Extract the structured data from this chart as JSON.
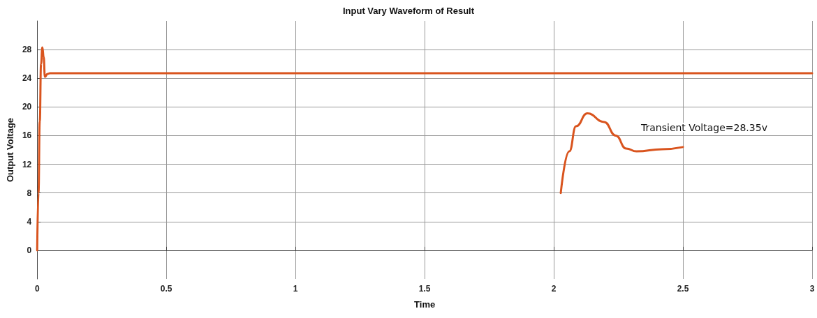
{
  "chart_data": {
    "type": "line",
    "title": "Input Vary Waveform of Result",
    "xlabel": "Time",
    "ylabel": "Output Voltage",
    "series": [
      {
        "color": "#d9541e",
        "x": [
          0,
          0.005,
          0.01,
          0.015,
          0.02,
          0.025,
          0.03,
          0.04,
          0.05,
          3
        ],
        "values": [
          0,
          8,
          18,
          26,
          28.3,
          27,
          24.2,
          24.6,
          24.7,
          24.7
        ]
      },
      {
        "color": "#d9541e",
        "x": [
          2.027,
          2.06,
          2.086,
          2.13,
          2.195,
          2.24,
          2.28,
          2.32,
          2.42,
          2.5
        ],
        "values": [
          8,
          13.8,
          17.3,
          19.1,
          17.9,
          16,
          14.2,
          13.8,
          14.1,
          14.4
        ]
      }
    ],
    "annotations": [
      "Transient Voltage=28.35v"
    ],
    "xlim": [
      0,
      3
    ],
    "xticks": [
      0,
      0.5,
      1,
      1.5,
      2,
      2.5,
      3
    ],
    "ylim": [
      -4,
      32
    ],
    "yticks": [
      0,
      4,
      8,
      12,
      16,
      20,
      24,
      28
    ],
    "grid": true,
    "marker": "none",
    "line_style": "solid"
  }
}
